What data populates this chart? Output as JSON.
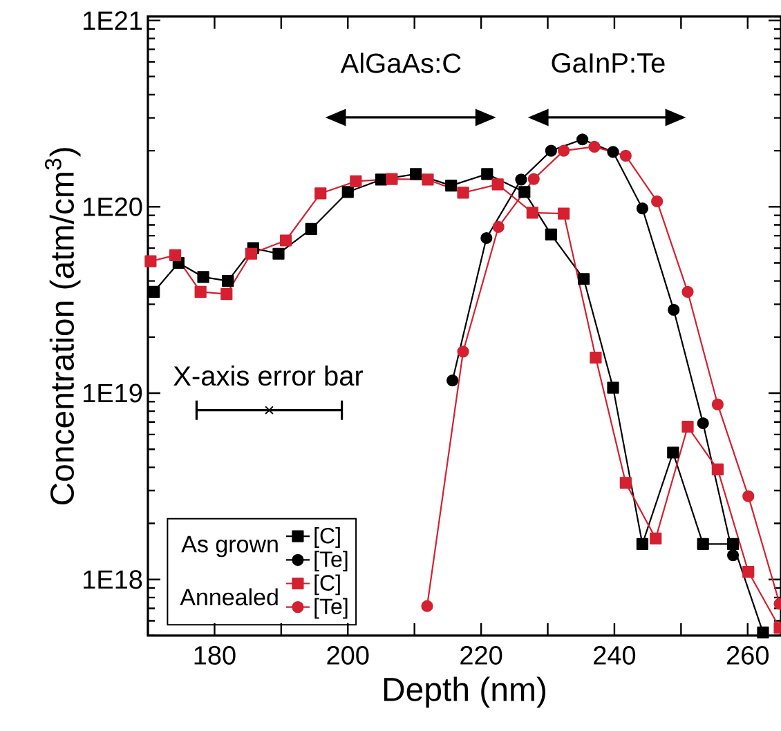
{
  "chart_data": {
    "type": "line",
    "xlabel": "Depth (nm)",
    "ylabel": "Concentration (atm/cm$^{3}$)",
    "xlim": [
      170,
      265
    ],
    "ylim": [
      5e+17,
      1.05e+21
    ],
    "log": "y",
    "grid": false,
    "legend": "bottom left",
    "line_style": "solid",
    "xticks": [
      {
        "value": 170,
        "label": null
      },
      180,
      {
        "value": 190,
        "label": null
      },
      200,
      {
        "value": 210,
        "label": null
      },
      220,
      {
        "value": 230,
        "label": null
      },
      240,
      {
        "value": 250,
        "label": null
      },
      260
    ],
    "yticks": [
      {
        "value": 1e+18,
        "label": "1E18"
      },
      {
        "value": 1e+19,
        "label": "1E19"
      },
      {
        "value": 1e+20,
        "label": "1E20"
      },
      {
        "value": 1e+21,
        "label": "1E21"
      }
    ],
    "series": [
      {
        "name": "[C]",
        "color": "#000000",
        "marker": "square",
        "x": [
          170.9,
          174.6,
          178.3,
          182.0,
          185.8,
          189.6,
          194.5,
          200.0,
          205.0,
          210.2,
          215.5,
          220.9,
          226.5,
          230.5,
          235.4,
          239.8,
          244.2,
          248.8,
          253.3,
          257.8,
          262.3
        ],
        "values": [
          3.5e+19,
          5e+19,
          4.2e+19,
          4e+19,
          6e+19,
          5.6e+19,
          7.6e+19,
          1.2e+20,
          1.4e+20,
          1.5e+20,
          1.3e+20,
          1.5e+20,
          1.2e+20,
          7.1e+19,
          4.1e+19,
          1.07e+19,
          1.55e+18,
          4.8e+18,
          1.55e+18,
          1.55e+18,
          5.2e+17
        ]
      },
      {
        "name": "[Te]",
        "color": "#000000",
        "marker": "circle",
        "x": [
          215.7,
          220.8,
          226.0,
          230.5,
          235.2,
          239.8,
          244.2,
          248.9,
          253.3,
          257.8
        ],
        "values": [
          1.17e+19,
          6.8e+19,
          1.4e+20,
          2e+20,
          2.3e+20,
          1.97e+20,
          9.8e+19,
          2.8e+19,
          6.9e+18,
          1.35e+18
        ]
      },
      {
        "name": "[C]",
        "color": "#d42030",
        "marker": "square",
        "x": [
          170.4,
          174.1,
          177.9,
          181.8,
          185.5,
          190.7,
          195.9,
          201.2,
          206.6,
          212.0,
          217.3,
          222.5,
          227.7,
          232.4,
          237.2,
          241.7,
          246.2,
          251.0,
          255.5,
          260.1,
          264.8
        ],
        "values": [
          5.1e+19,
          5.5e+19,
          3.5e+19,
          3.4e+19,
          5.6e+19,
          6.6e+19,
          1.18e+20,
          1.37e+20,
          1.41e+20,
          1.4e+20,
          1.19e+20,
          1.32e+20,
          9.3e+19,
          9.2e+19,
          1.55e+19,
          3.3e+18,
          1.66e+18,
          6.6e+18,
          3.9e+18,
          1.1e+18,
          5.5e+17
        ]
      },
      {
        "name": "[Te]",
        "color": "#d42030",
        "marker": "circle",
        "x": [
          211.9,
          217.3,
          222.6,
          227.9,
          232.4,
          237.0,
          241.7,
          246.4,
          251.0,
          255.5,
          260.1,
          264.8
        ],
        "values": [
          7.2e+17,
          1.67e+19,
          7.8e+19,
          1.41e+20,
          2e+20,
          2.1e+20,
          1.88e+20,
          1.07e+20,
          3.5e+19,
          8.7e+18,
          2.8e+18,
          7.4e+17
        ]
      },
      {
        "type": "scatter",
        "color": "#000000",
        "marker": "cross",
        "x": [
          188.2
        ],
        "values": [
          8.1e+18
        ],
        "xerrors": [
          10.9
        ]
      }
    ],
    "annotations": [
      "As grown",
      "Annealed",
      "AlGaAs:C",
      "GaInP:Te",
      "X-axis error bar"
    ]
  }
}
